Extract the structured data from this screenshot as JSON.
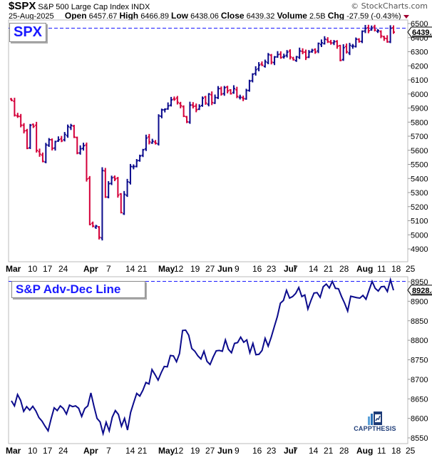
{
  "header": {
    "symbol": "$SPX",
    "name": "S&P 500 Large Cap Index",
    "exchange": "INDX",
    "date": "25-Aug-2025",
    "open_label": "Open",
    "open": "6457.67",
    "high_label": "High",
    "high": "6466.89",
    "low_label": "Low",
    "low": "6438.06",
    "close_label": "Close",
    "close": "6439.32",
    "volume_label": "Volume",
    "volume": "2.5B",
    "chg_label": "Chg",
    "chg": "-27.59 (-0.43%)",
    "copyright": "© StockCharts.com"
  },
  "panels": {
    "price_label": "SPX",
    "price_last": "6439.3",
    "ad_label": "S&P Adv-Dec Line",
    "ad_last": "8928.4"
  },
  "watermark": "CAPPTHESIS",
  "colors": {
    "up": "#0b0b8c",
    "down": "#d4003a",
    "line": "#0b0b8c",
    "dash": "#1a1aff",
    "grid": "#bbbbbb"
  },
  "chart_data": [
    {
      "type": "ohlc",
      "title": "$SPX S&P 500 Large Cap Index",
      "ylim": [
        4800,
        6520
      ],
      "yticks": [
        4900,
        5000,
        5100,
        5200,
        5300,
        5400,
        5500,
        5600,
        5700,
        5800,
        5900,
        6000,
        6100,
        6200,
        6300,
        6400,
        6500
      ],
      "xticks": [
        "Mar",
        "10",
        "17",
        "24",
        "Apr",
        "7",
        "14",
        "21",
        "May",
        "12",
        "19",
        "27",
        "Jun",
        "9",
        "16",
        "23",
        "Jul",
        "7",
        "14",
        "21",
        "28",
        "Aug",
        "11",
        "18",
        "25"
      ],
      "reference_line": 6466.89,
      "last_value": 6439.3,
      "close_series": [
        5955,
        5849,
        5842,
        5778,
        5738,
        5614,
        5778,
        5770,
        5599,
        5572,
        5521,
        5638,
        5675,
        5614,
        5662,
        5675,
        5667,
        5712,
        5768,
        5776,
        5693,
        5581,
        5611,
        5633,
        5396,
        5074,
        5062,
        5062,
        4982,
        5456,
        5268,
        5363,
        5405,
        5396,
        5282,
        5158,
        5287,
        5376,
        5485,
        5485,
        5526,
        5560,
        5604,
        5687,
        5660,
        5664,
        5650,
        5844,
        5887,
        5892,
        5916,
        5958,
        5963,
        5940,
        5916,
        5842,
        5802,
        5921,
        5912,
        5888,
        5912,
        5970,
        5935,
        6000,
        5939,
        5975,
        6038,
        6000,
        6045,
        6022,
        6002,
        6038,
        5982,
        5977,
        5967,
        6025,
        6092,
        6141,
        6173,
        6205,
        6204,
        6229,
        6279,
        6225,
        6263,
        6280,
        6259,
        6268,
        6297,
        6263,
        6243,
        6264,
        6305,
        6297,
        6259,
        6297,
        6309,
        6297,
        6359,
        6363,
        6389,
        6371,
        6362,
        6371,
        6339,
        6238,
        6329,
        6299,
        6345,
        6340,
        6389,
        6373,
        6445,
        6466,
        6449,
        6468,
        6453,
        6449,
        6411,
        6395,
        6370,
        6467,
        6439
      ],
      "ylabel": ""
    },
    {
      "type": "line",
      "title": "S&P Adv-Dec Line",
      "ylim": [
        8530,
        8965
      ],
      "yticks": [
        8550,
        8600,
        8650,
        8700,
        8750,
        8800,
        8850,
        8900,
        8950
      ],
      "reference_line": 8951,
      "last_value": 8928.4,
      "values": [
        8645,
        8632,
        8661,
        8646,
        8618,
        8630,
        8621,
        8631,
        8619,
        8602,
        8593,
        8580,
        8568,
        8599,
        8627,
        8620,
        8632,
        8625,
        8611,
        8634,
        8630,
        8632,
        8626,
        8605,
        8625,
        8632,
        8665,
        8631,
        8600,
        8591,
        8561,
        8590,
        8568,
        8603,
        8620,
        8610,
        8580,
        8600,
        8570,
        8615,
        8640,
        8664,
        8657,
        8672,
        8692,
        8688,
        8725,
        8712,
        8698,
        8717,
        8733,
        8732,
        8761,
        8760,
        8745,
        8766,
        8825,
        8826,
        8813,
        8779,
        8772,
        8760,
        8752,
        8772,
        8746,
        8738,
        8757,
        8773,
        8774,
        8772,
        8801,
        8777,
        8768,
        8792,
        8794,
        8808,
        8795,
        8801,
        8768,
        8792,
        8763,
        8764,
        8774,
        8805,
        8785,
        8808,
        8835,
        8861,
        8895,
        8902,
        8928,
        8908,
        8912,
        8920,
        8935,
        8912,
        8916,
        8880,
        8902,
        8921,
        8922,
        8910,
        8937,
        8944,
        8934,
        8951,
        8933,
        8932,
        8912,
        8895,
        8875,
        8913,
        8911,
        8909,
        8908,
        8915,
        8905,
        8928,
        8951,
        8933,
        8926,
        8937,
        8938,
        8925,
        8955,
        8928
      ],
      "xticks": [
        "Mar",
        "10",
        "17",
        "24",
        "Apr",
        "7",
        "14",
        "21",
        "May",
        "12",
        "19",
        "27",
        "Jun",
        "9",
        "16",
        "23",
        "Jul",
        "7",
        "14",
        "21",
        "28",
        "Aug",
        "11",
        "18",
        "25"
      ]
    }
  ]
}
